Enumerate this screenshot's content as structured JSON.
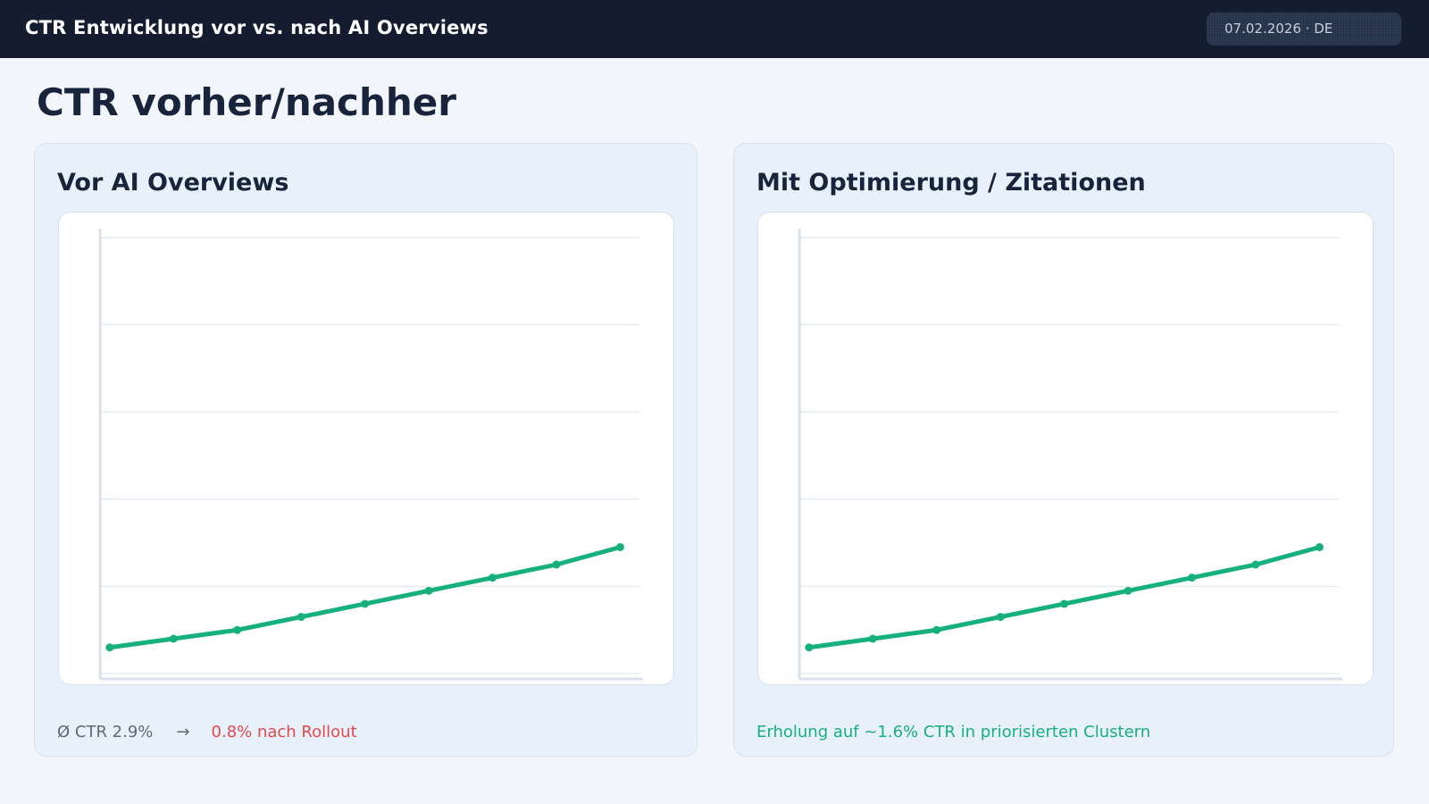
{
  "header": {
    "title": "CTR Entwicklung vor vs. nach AI Overviews",
    "date_badge": "07.02.2026 · DE"
  },
  "page_title": "CTR vorher/nachher",
  "panels": [
    {
      "title": "Vor AI Overviews",
      "caption": {
        "before": "Ø CTR 2.9%",
        "arrow": "→",
        "after": "0.8% nach Rollout"
      }
    },
    {
      "title": "Mit Optimierung / Zitationen",
      "caption": {
        "text": "Erholung auf ~1.6% CTR in priorisierten Clustern"
      }
    }
  ],
  "colors": {
    "line": "#16b07c",
    "negative": "#e24a4a",
    "positive": "#16b07c",
    "grid": "#e4ebf4",
    "axis": "#d8e1ec"
  },
  "chart_data": [
    {
      "type": "line",
      "title": "Vor AI Overviews",
      "xlabel": "",
      "ylabel": "",
      "x": [
        0,
        1,
        2,
        3,
        4,
        5,
        6,
        7,
        8
      ],
      "series": [
        {
          "values": [
            0.06,
            0.08,
            0.1,
            0.13,
            0.16,
            0.19,
            0.22,
            0.25,
            0.29
          ]
        }
      ],
      "ylim": [
        0,
        1
      ],
      "xlim": [
        -0.15,
        8.3
      ],
      "grid": true,
      "gridlines": [
        0,
        0.2,
        0.4,
        0.6,
        0.8,
        1.0
      ],
      "legend": "none"
    },
    {
      "type": "line",
      "title": "Mit Optimierung / Zitationen",
      "xlabel": "",
      "ylabel": "",
      "x": [
        0,
        1,
        2,
        3,
        4,
        5,
        6,
        7,
        8
      ],
      "series": [
        {
          "values": [
            0.06,
            0.08,
            0.1,
            0.13,
            0.16,
            0.19,
            0.22,
            0.25,
            0.29
          ]
        }
      ],
      "ylim": [
        0,
        1
      ],
      "xlim": [
        -0.15,
        8.3
      ],
      "grid": true,
      "gridlines": [
        0,
        0.2,
        0.4,
        0.6,
        0.8,
        1.0
      ],
      "legend": "none"
    }
  ]
}
